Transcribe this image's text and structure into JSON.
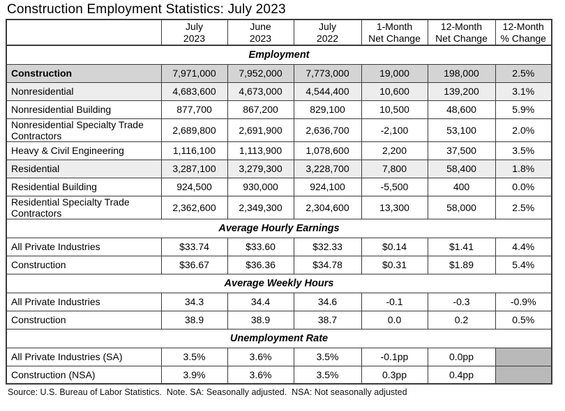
{
  "title": "Construction Employment Statistics: July 2023",
  "footer": "Source: U.S. Bureau of Labor Statistics.  Note. SA: Seasonally adjusted.  NSA: Not seasonally adjusted",
  "colors": {
    "row_highlight_medium": "#d4d4d4",
    "row_highlight_light": "#ededed",
    "blocked_cell_gray": "#b9b9b9",
    "grid_border": "#3a3a3a"
  },
  "chart_data": {
    "type": "table",
    "title": "Construction Employment Statistics: July 2023",
    "columns": [
      "",
      "July\n2023",
      "June\n2023",
      "July\n2022",
      "1-Month\nNet Change",
      "12-Month\nNet Change",
      "12-Month\n% Change"
    ],
    "sections": [
      {
        "header": "Employment",
        "rows": [
          {
            "label": "Construction",
            "bold": true,
            "shade": "medium",
            "values": [
              "7,971,000",
              "7,952,000",
              "7,773,000",
              "19,000",
              "198,000",
              "2.5%"
            ]
          },
          {
            "label": "Nonresidential",
            "shade": "light",
            "values": [
              "4,683,600",
              "4,673,000",
              "4,544,400",
              "10,600",
              "139,200",
              "3.1%"
            ]
          },
          {
            "label": "Nonresidential Building",
            "values": [
              "877,700",
              "867,200",
              "829,100",
              "10,500",
              "48,600",
              "5.9%"
            ]
          },
          {
            "label": "Nonresidential Specialty Trade Contractors",
            "values": [
              "2,689,800",
              "2,691,900",
              "2,636,700",
              "-2,100",
              "53,100",
              "2.0%"
            ]
          },
          {
            "label": "Heavy & Civil Engineering",
            "values": [
              "1,116,100",
              "1,113,900",
              "1,078,600",
              "2,200",
              "37,500",
              "3.5%"
            ]
          },
          {
            "label": "Residential",
            "shade": "light",
            "values": [
              "3,287,100",
              "3,279,300",
              "3,228,700",
              "7,800",
              "58,400",
              "1.8%"
            ]
          },
          {
            "label": "Residential Building",
            "values": [
              "924,500",
              "930,000",
              "924,100",
              "-5,500",
              "400",
              "0.0%"
            ]
          },
          {
            "label": "Residential Specialty Trade Contractors",
            "values": [
              "2,362,600",
              "2,349,300",
              "2,304,600",
              "13,300",
              "58,000",
              "2.5%"
            ]
          }
        ]
      },
      {
        "header": "Average Hourly Earnings",
        "rows": [
          {
            "label": "All Private Industries",
            "values": [
              "$33.74",
              "$33.60",
              "$32.33",
              "$0.14",
              "$1.41",
              "4.4%"
            ]
          },
          {
            "label": "Construction",
            "values": [
              "$36.67",
              "$36.36",
              "$34.78",
              "$0.31",
              "$1.89",
              "5.4%"
            ]
          }
        ]
      },
      {
        "header": "Average Weekly Hours",
        "rows": [
          {
            "label": "All Private Industries",
            "values": [
              "34.3",
              "34.4",
              "34.6",
              "-0.1",
              "-0.3",
              "-0.9%"
            ]
          },
          {
            "label": "Construction",
            "values": [
              "38.9",
              "38.9",
              "38.7",
              "0.0",
              "0.2",
              "0.5%"
            ]
          }
        ]
      },
      {
        "header": "Unemployment Rate",
        "rows": [
          {
            "label": "All Private Industries (SA)",
            "values": [
              "3.5%",
              "3.6%",
              "3.5%",
              "-0.1pp",
              "0.0pp",
              ""
            ],
            "shade_last": true
          },
          {
            "label": "Construction (NSA)",
            "values": [
              "3.9%",
              "3.6%",
              "3.5%",
              "0.3pp",
              "0.4pp",
              ""
            ],
            "shade_last": true
          }
        ]
      }
    ]
  }
}
